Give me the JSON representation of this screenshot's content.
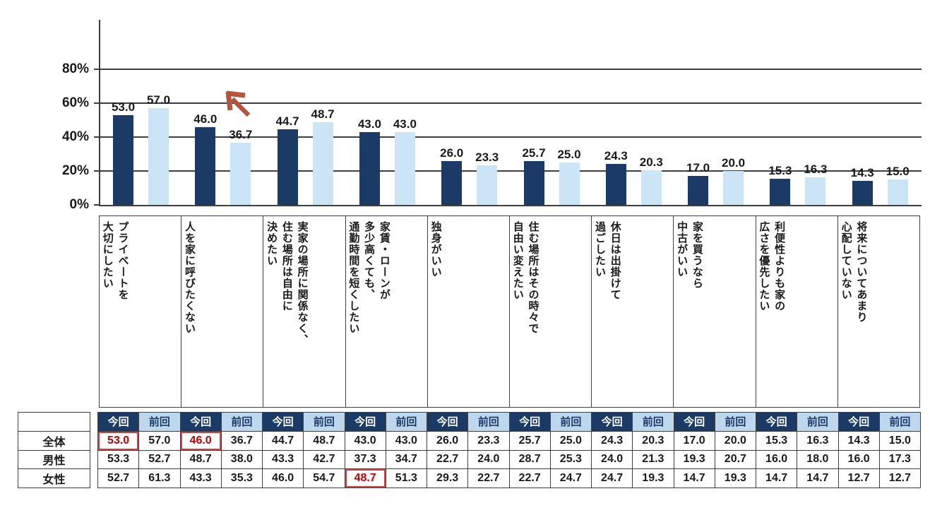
{
  "chart_data": {
    "type": "bar",
    "title": "",
    "categories": [
      "プライベートを大切にしたい",
      "人を家に呼びたくない",
      "実家の場所に関係なく、住む場所は自由に決めたい",
      "家賃・ローンが多少高くても、通勤時間を短くしたい",
      "独身がいい",
      "住む場所はその時々で自由い変えたい",
      "休日は出掛けて過ごしたい",
      "家を買うなら中古がいい",
      "利便性よりも家の広さを優先したい",
      "将来についてあまり心配していない"
    ],
    "categories_lines": [
      [
        "プライベートを",
        "大切にしたい"
      ],
      [
        "人を家に呼びたくない"
      ],
      [
        "実家の場所に関係なく、",
        "住む場所は自由に",
        "決めたい"
      ],
      [
        "家賃・ローンが",
        "多少高くても、",
        "通勤時間を短くしたい"
      ],
      [
        "独身がいい"
      ],
      [
        "住む場所はその時々で",
        "自由い変えたい"
      ],
      [
        "休日は出掛けて",
        "過ごしたい"
      ],
      [
        "家を買うなら",
        "中古がいい"
      ],
      [
        "利便性よりも家の",
        "広さを優先したい"
      ],
      [
        "将来についてあまり",
        "心配していない"
      ]
    ],
    "series": [
      {
        "name": "今回",
        "color": "#1B3B66",
        "values": [
          53.0,
          46.0,
          44.7,
          43.0,
          26.0,
          25.7,
          24.3,
          17.0,
          15.3,
          14.3
        ]
      },
      {
        "name": "前回",
        "color": "#CBE4F6",
        "values": [
          57.0,
          36.7,
          48.7,
          43.0,
          23.3,
          25.0,
          20.3,
          20.0,
          16.3,
          15.0
        ]
      }
    ],
    "xlabel": "",
    "ylabel": "",
    "ylim": [
      0,
      100
    ],
    "ytick_labels": [
      "0%",
      "20%",
      "40%",
      "60%",
      "80%"
    ],
    "grid": true,
    "legend_position": "none (series identified by table headers)",
    "annotations": [
      {
        "type": "arrow",
        "direction": "up-left",
        "color": "#B5543C",
        "near_category_index": 1,
        "near_value": 36.7
      }
    ]
  },
  "table": {
    "corner_label": "",
    "sub_headers": [
      "今回",
      "前回"
    ],
    "rows": [
      {
        "label": "全体",
        "values": [
          "53.0",
          "57.0",
          "46.0",
          "36.7",
          "44.7",
          "48.7",
          "43.0",
          "43.0",
          "26.0",
          "23.3",
          "25.7",
          "25.0",
          "24.3",
          "20.3",
          "17.0",
          "20.0",
          "15.3",
          "16.3",
          "14.3",
          "15.0"
        ]
      },
      {
        "label": "男性",
        "values": [
          "53.3",
          "52.7",
          "48.7",
          "38.0",
          "43.3",
          "42.7",
          "37.3",
          "34.7",
          "22.7",
          "24.0",
          "28.7",
          "25.3",
          "24.0",
          "21.3",
          "19.3",
          "20.7",
          "16.0",
          "18.0",
          "16.0",
          "17.3"
        ]
      },
      {
        "label": "女性",
        "values": [
          "52.7",
          "61.3",
          "43.3",
          "35.3",
          "46.0",
          "54.7",
          "48.7",
          "51.3",
          "29.3",
          "22.7",
          "22.7",
          "24.7",
          "24.7",
          "19.3",
          "14.7",
          "19.3",
          "14.7",
          "14.7",
          "12.7",
          "12.7"
        ]
      }
    ],
    "highlighted_cells": [
      {
        "row_label": "全体",
        "col_index": 0,
        "value": "53.0"
      },
      {
        "row_label": "全体",
        "col_index": 2,
        "value": "46.0"
      },
      {
        "row_label": "女性",
        "col_index": 6,
        "value": "48.7"
      }
    ],
    "highlight_text_color": "#C00000",
    "highlight_border_color": "#CE4444"
  },
  "style_colors": {
    "bar_current": "#1B3B66",
    "bar_previous": "#CBE4F6",
    "header_current_bg": "#1B3B66",
    "header_previous_bg": "#BDD7EE",
    "gridline": "#3f3f3f",
    "arrow": "#B5543C"
  }
}
